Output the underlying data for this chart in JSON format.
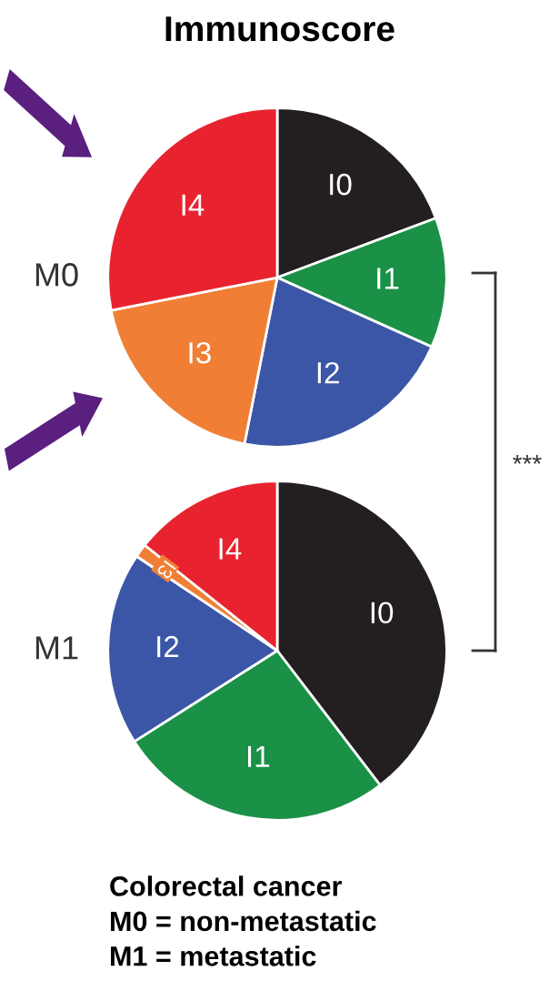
{
  "chart_data": [
    {
      "type": "pie",
      "title": "Immunoscore",
      "ylabel": "M0",
      "categories": [
        "I0",
        "I1",
        "I2",
        "I3",
        "I4"
      ],
      "values": [
        19.3,
        12.4,
        21.4,
        18.8,
        28.1
      ],
      "colors": [
        "#231f20",
        "#1a9146",
        "#3b56a6",
        "#f07f35",
        "#e8232f"
      ],
      "annotations": [
        "***"
      ]
    },
    {
      "type": "pie",
      "ylabel": "M1",
      "categories": [
        "I0",
        "I1",
        "I2",
        "I3",
        "I4"
      ],
      "values": [
        39.6,
        26.4,
        18.4,
        1.3,
        14.3
      ],
      "colors": [
        "#231f20",
        "#1a9146",
        "#3b56a6",
        "#f07f35",
        "#e8232f"
      ],
      "annotations": [
        "Colorectal cancer\nM0 = non-metastatic\nM1 = metastatic"
      ]
    }
  ]
}
